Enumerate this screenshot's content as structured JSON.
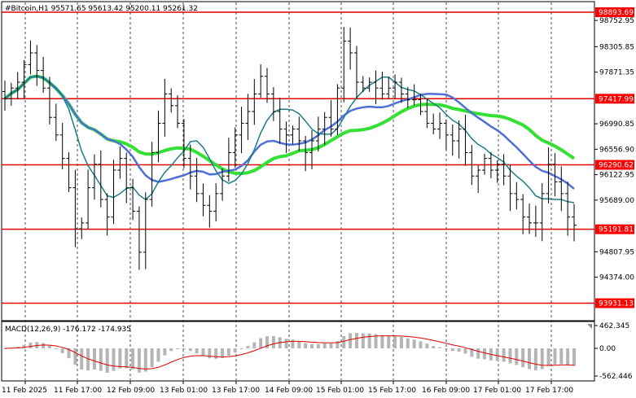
{
  "header": {
    "symbol_line": "#Bitcoin,H1  95571.65 95613.42 95200.11 95261.32",
    "macd_label": "MACD(12,26,9) -176.172 -174.935"
  },
  "colors": {
    "level_line": "#e00000",
    "level_box": "#ff0000",
    "ma_green": "#33e033",
    "ma_blue": "#4d6fd6",
    "ma_teal": "#1b7f8a",
    "candle": "#000000",
    "grid": "#000000",
    "macd_hist": "#b5b5b5",
    "macd_signal": "#e00000"
  },
  "chart_data": {
    "type": "candlestick",
    "price_axis": [
      "98752.95",
      "98305.85",
      "97871.35",
      "96990.85",
      "96556.90",
      "96122.95",
      "95689.00",
      "94807.95",
      "94374.00"
    ],
    "levels": [
      {
        "label": "98893.69",
        "value": 98893.69
      },
      {
        "label": "97417.99",
        "value": 97417.99
      },
      {
        "label": "96290.62",
        "value": 96290.62
      },
      {
        "label": "95191.81",
        "value": 95191.81
      },
      {
        "label": "93931.13",
        "value": 93931.13
      }
    ],
    "time_axis": [
      "11 Feb 2025",
      "11 Feb 17:00",
      "12 Feb 09:00",
      "13 Feb 01:00",
      "13 Feb 17:00",
      "14 Feb 09:00",
      "15 Feb 01:00",
      "15 Feb 17:00",
      "16 Feb 09:00",
      "17 Feb 01:00",
      "17 Feb 17:00"
    ],
    "macd_axis": [
      "462.345",
      "0.00",
      "-562.446"
    ],
    "closes": [
      97420,
      97600,
      97700,
      98000,
      98200,
      97900,
      97600,
      97100,
      96800,
      96400,
      95900,
      95200,
      95300,
      95900,
      96300,
      95700,
      95400,
      96200,
      96400,
      95900,
      95500,
      94800,
      95700,
      96500,
      97000,
      97500,
      97300,
      97000,
      96400,
      96100,
      95800,
      95600,
      95500,
      95800,
      96100,
      96500,
      96800,
      97000,
      97200,
      97500,
      97800,
      97500,
      97200,
      96900,
      96800,
      96900,
      96700,
      96500,
      96700,
      96900,
      97100,
      96900,
      97600,
      98400,
      98200,
      97700,
      97600,
      97700,
      97600,
      97500,
      97600,
      97700,
      97500,
      97400,
      97400,
      97200,
      97000,
      96900,
      97000,
      96800,
      96700,
      96900,
      96500,
      96100,
      96200,
      96400,
      96200,
      96300,
      96100,
      95800,
      95700,
      95400,
      95300,
      95300,
      95800,
      96300,
      96000,
      95800,
      95400,
      95261
    ]
  }
}
